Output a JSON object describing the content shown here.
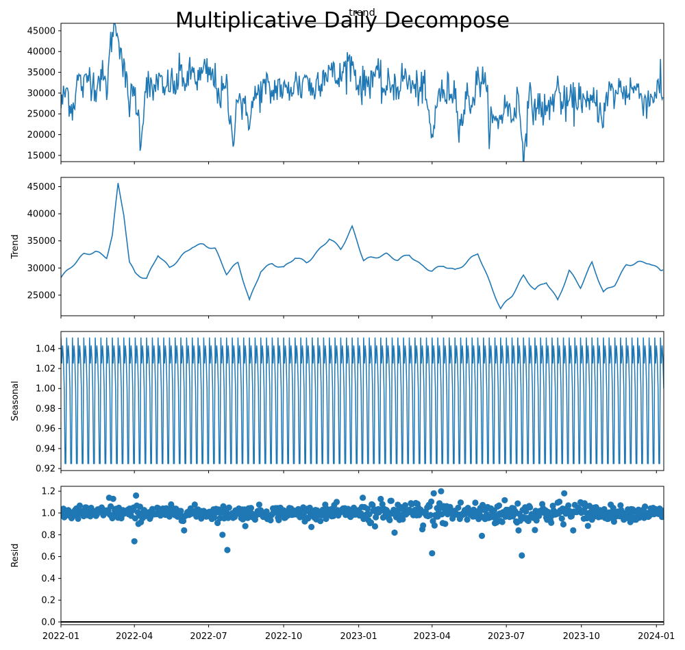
{
  "figure": {
    "title": "Multiplicative Daily Decompose",
    "top_panel_title": "trend"
  },
  "colors": {
    "series": "#1f77b4",
    "axes": "#000000",
    "background": "#ffffff"
  },
  "chart_data": [
    {
      "type": "line",
      "name": "observed",
      "ylabel": "",
      "xlim": [
        "2022-01-01",
        "2024-01-10"
      ],
      "ylim": [
        13500,
        46800
      ],
      "yticks": [
        15000,
        20000,
        25000,
        30000,
        35000,
        40000,
        45000
      ],
      "grid": false,
      "x": [
        "2022-01-01",
        "2022-01-08",
        "2022-01-15",
        "2022-01-22",
        "2022-01-29",
        "2022-02-05",
        "2022-02-12",
        "2022-02-19",
        "2022-02-26",
        "2022-03-05",
        "2022-03-12",
        "2022-03-19",
        "2022-03-26",
        "2022-04-02",
        "2022-04-09",
        "2022-04-16",
        "2022-04-23",
        "2022-04-30",
        "2022-05-07",
        "2022-05-14",
        "2022-05-21",
        "2022-05-28",
        "2022-06-04",
        "2022-06-11",
        "2022-06-18",
        "2022-06-25",
        "2022-07-02",
        "2022-07-09",
        "2022-07-16",
        "2022-07-23",
        "2022-07-30",
        "2022-08-06",
        "2022-08-13",
        "2022-08-20",
        "2022-08-27",
        "2022-09-03",
        "2022-09-10",
        "2022-09-17",
        "2022-09-24",
        "2022-10-01",
        "2022-10-08",
        "2022-10-15",
        "2022-10-22",
        "2022-10-29",
        "2022-11-05",
        "2022-11-12",
        "2022-11-19",
        "2022-11-26",
        "2022-12-03",
        "2022-12-10",
        "2022-12-17",
        "2022-12-24",
        "2022-12-31",
        "2023-01-07",
        "2023-01-14",
        "2023-01-21",
        "2023-01-28",
        "2023-02-04",
        "2023-02-11",
        "2023-02-18",
        "2023-02-25",
        "2023-03-04",
        "2023-03-11",
        "2023-03-18",
        "2023-03-25",
        "2023-04-01",
        "2023-04-08",
        "2023-04-15",
        "2023-04-22",
        "2023-04-29",
        "2023-05-06",
        "2023-05-13",
        "2023-05-20",
        "2023-05-27",
        "2023-06-03",
        "2023-06-10",
        "2023-06-17",
        "2023-06-24",
        "2023-07-01",
        "2023-07-08",
        "2023-07-15",
        "2023-07-22",
        "2023-07-29",
        "2023-08-05",
        "2023-08-12",
        "2023-08-19",
        "2023-08-26",
        "2023-09-02",
        "2023-09-09",
        "2023-09-16",
        "2023-09-23",
        "2023-09-30",
        "2023-10-07",
        "2023-10-14",
        "2023-10-21",
        "2023-10-28",
        "2023-11-04",
        "2023-11-11",
        "2023-11-18",
        "2023-11-25",
        "2023-12-02",
        "2023-12-09",
        "2023-12-16",
        "2023-12-23",
        "2023-12-30",
        "2024-01-06",
        "2024-01-09"
      ],
      "y": [
        27000,
        31000,
        26000,
        33500,
        31000,
        34800,
        31500,
        34500,
        31000,
        45500,
        45500,
        35000,
        28000,
        30000,
        19000,
        34000,
        29000,
        34000,
        29500,
        33000,
        31000,
        35500,
        32000,
        35500,
        33000,
        35000,
        34500,
        33000,
        29000,
        31500,
        18500,
        30500,
        25500,
        24500,
        29000,
        30500,
        31500,
        29500,
        32500,
        30000,
        30500,
        33000,
        31000,
        35000,
        29500,
        33500,
        34500,
        36000,
        33500,
        33500,
        37300,
        37300,
        32500,
        31500,
        33500,
        35000,
        32000,
        30500,
        32500,
        31500,
        34000,
        32500,
        30500,
        32000,
        28500,
        18000,
        30500,
        29000,
        31000,
        30500,
        22000,
        29000,
        28000,
        33000,
        34000,
        24000,
        22500,
        24500,
        27500,
        24000,
        29500,
        16000,
        28000,
        26500,
        27000,
        25000,
        28000,
        31500,
        26500,
        28000,
        27500,
        30500,
        26000,
        28000,
        27500,
        24500,
        30500,
        29500,
        31500,
        30000,
        31500,
        30500,
        29000,
        28000,
        30500,
        31000,
        29000
      ]
    },
    {
      "type": "line",
      "name": "trend",
      "ylabel": "Trend",
      "xlim": [
        "2022-01-01",
        "2024-01-10"
      ],
      "ylim": [
        21200,
        46700
      ],
      "yticks": [
        25000,
        30000,
        35000,
        40000,
        45000
      ],
      "grid": false,
      "x": [
        "2022-01-01",
        "2022-01-15",
        "2022-01-29",
        "2022-02-12",
        "2022-02-26",
        "2022-03-05",
        "2022-03-12",
        "2022-03-19",
        "2022-03-26",
        "2022-04-02",
        "2022-04-16",
        "2022-04-30",
        "2022-05-14",
        "2022-05-28",
        "2022-06-11",
        "2022-06-25",
        "2022-07-09",
        "2022-07-23",
        "2022-08-06",
        "2022-08-20",
        "2022-09-03",
        "2022-09-17",
        "2022-10-01",
        "2022-10-15",
        "2022-10-29",
        "2022-11-12",
        "2022-11-26",
        "2022-12-10",
        "2022-12-24",
        "2023-01-07",
        "2023-01-21",
        "2023-02-04",
        "2023-02-18",
        "2023-03-04",
        "2023-03-18",
        "2023-04-01",
        "2023-04-15",
        "2023-04-29",
        "2023-05-13",
        "2023-05-27",
        "2023-06-10",
        "2023-06-24",
        "2023-07-08",
        "2023-07-22",
        "2023-08-05",
        "2023-08-19",
        "2023-09-02",
        "2023-09-16",
        "2023-09-30",
        "2023-10-14",
        "2023-10-28",
        "2023-11-11",
        "2023-11-25",
        "2023-12-09",
        "2023-12-23",
        "2024-01-06",
        "2024-01-09"
      ],
      "y": [
        28200,
        30500,
        32500,
        33000,
        32000,
        36000,
        45500,
        40000,
        31000,
        29000,
        28000,
        32500,
        30000,
        32000,
        34000,
        34300,
        33500,
        29000,
        31000,
        24000,
        29500,
        30800,
        30000,
        32000,
        31000,
        33000,
        35500,
        33500,
        37500,
        31500,
        32000,
        32500,
        31500,
        32500,
        30500,
        29500,
        30500,
        29500,
        31000,
        32800,
        27500,
        22500,
        25000,
        28500,
        26000,
        27500,
        24000,
        29500,
        26500,
        31000,
        25500,
        27000,
        30500,
        31000,
        31000,
        29500,
        29700
      ]
    },
    {
      "type": "line",
      "name": "seasonal",
      "ylabel": "Seasonal",
      "xlim": [
        "2022-01-01",
        "2024-01-10"
      ],
      "ylim": [
        0.918,
        1.057
      ],
      "yticks": [
        0.92,
        0.94,
        0.96,
        0.98,
        1.0,
        1.02,
        1.04
      ],
      "grid": false,
      "period_days": 7,
      "weekly_pattern": [
        1.051,
        1.025,
        1.043,
        1.03,
        1.0,
        0.925,
        0.925
      ]
    },
    {
      "type": "scatter",
      "name": "resid",
      "ylabel": "Resid",
      "xlim": [
        "2022-01-01",
        "2024-01-10"
      ],
      "ylim": [
        -0.025,
        1.245
      ],
      "yticks": [
        0.0,
        0.2,
        0.4,
        0.6,
        0.8,
        1.0,
        1.2
      ],
      "grid": false,
      "reference_line": 0,
      "center": 1.0,
      "outliers": [
        {
          "x": "2022-03-01",
          "y": 1.14
        },
        {
          "x": "2022-03-06",
          "y": 1.13
        },
        {
          "x": "2022-04-01",
          "y": 0.74
        },
        {
          "x": "2022-04-03",
          "y": 1.16
        },
        {
          "x": "2022-04-06",
          "y": 0.9
        },
        {
          "x": "2022-06-01",
          "y": 0.84
        },
        {
          "x": "2022-07-18",
          "y": 0.8
        },
        {
          "x": "2022-07-24",
          "y": 0.66
        },
        {
          "x": "2022-08-15",
          "y": 0.88
        },
        {
          "x": "2023-01-06",
          "y": 1.14
        },
        {
          "x": "2023-02-14",
          "y": 0.82
        },
        {
          "x": "2023-03-20",
          "y": 0.85
        },
        {
          "x": "2023-04-01",
          "y": 0.63
        },
        {
          "x": "2023-04-03",
          "y": 1.18
        },
        {
          "x": "2023-04-12",
          "y": 1.2
        },
        {
          "x": "2023-06-01",
          "y": 0.79
        },
        {
          "x": "2023-07-20",
          "y": 0.61
        },
        {
          "x": "2023-09-10",
          "y": 1.18
        },
        {
          "x": "2023-07-16",
          "y": 0.84
        }
      ]
    }
  ],
  "x_axis": {
    "tick_dates": [
      "2022-01-01",
      "2022-04-01",
      "2022-07-01",
      "2022-10-01",
      "2023-01-01",
      "2023-04-01",
      "2023-07-01",
      "2023-10-01",
      "2024-01-01"
    ],
    "tick_labels": [
      "2022-01",
      "2022-04",
      "2022-07",
      "2022-10",
      "2023-01",
      "2023-04",
      "2023-07",
      "2023-10",
      "2024-01"
    ]
  }
}
